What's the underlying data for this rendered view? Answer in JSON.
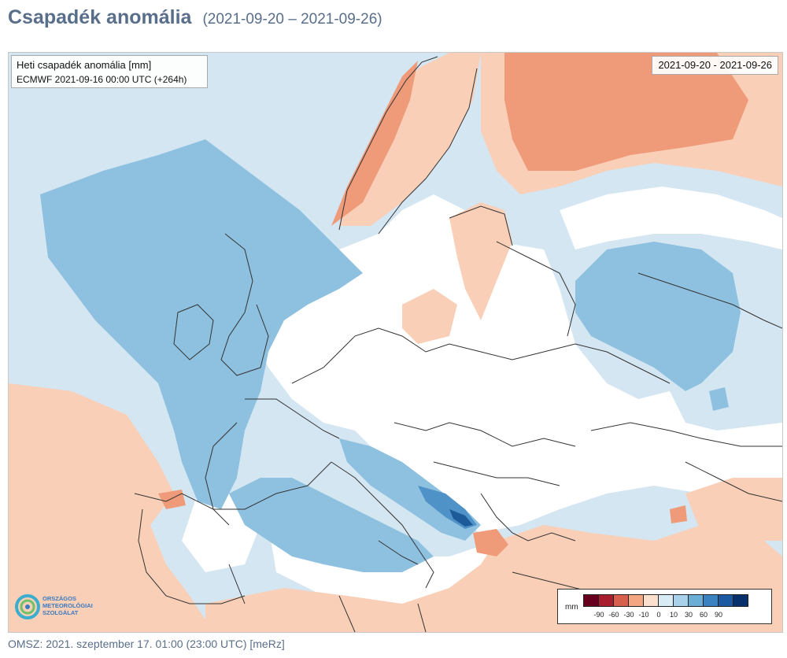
{
  "header": {
    "title": "Csapadék anomália",
    "date_range": "(2021-09-20 – 2021-09-26)"
  },
  "map": {
    "info_line1": "Heti csapadék anomália [mm]",
    "info_line2": "ECMWF 2021-09-16 00:00 UTC (+264h)",
    "date_box": "2021-09-20 - 2021-09-26",
    "legend": {
      "unit": "mm",
      "ticks": [
        "-90",
        "-60",
        "-30",
        "-10",
        "0",
        "10",
        "30",
        "60",
        "90"
      ],
      "colors": [
        "#67001f",
        "#a81e2e",
        "#d6604d",
        "#f4a582",
        "#fbe0d0",
        "#d9ecf6",
        "#a9d2ea",
        "#6aaed6",
        "#3a83c0",
        "#1b5aa3",
        "#08306b"
      ]
    },
    "colors": {
      "land": "#ffffff",
      "wet_light": "#d4e6f2",
      "wet_medium": "#8ec1e0",
      "wet_strong": "#4f92c7",
      "wet_max": "#1d5a9a",
      "dry_light": "#f9cfb7",
      "dry_medium": "#ef9a78",
      "border_lines": "#333333"
    }
  },
  "logo": {
    "line1": "ORSZÁGOS",
    "line2": "METEOROLÓGIAI",
    "line3": "SZOLGÁLAT"
  },
  "footer": {
    "text": "OMSZ: 2021. szeptember 17. 01:00 (23:00  UTC)  [meRz]"
  }
}
